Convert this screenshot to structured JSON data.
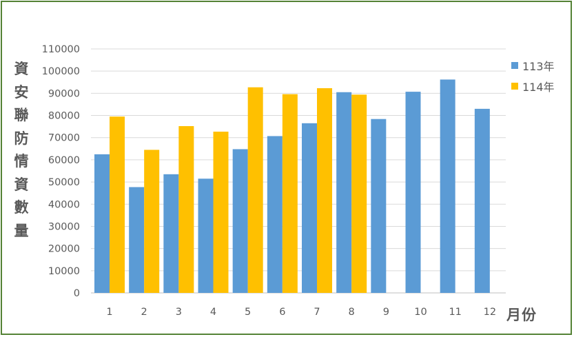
{
  "chart_data": {
    "type": "bar",
    "title": "",
    "ylabel": "資安聯防情資數量",
    "xlabel": "月份",
    "categories": [
      "1",
      "2",
      "3",
      "4",
      "5",
      "6",
      "7",
      "8",
      "9",
      "10",
      "11",
      "12"
    ],
    "series": [
      {
        "name": "113年",
        "color": "#5B9BD5",
        "values": [
          62500,
          47700,
          53500,
          51500,
          64800,
          70700,
          76500,
          90500,
          78400,
          90700,
          96200,
          83000
        ]
      },
      {
        "name": "114年",
        "color": "#FFC000",
        "values": [
          79500,
          64500,
          75200,
          72700,
          92700,
          89600,
          92300,
          89400,
          null,
          null,
          null,
          null
        ]
      }
    ],
    "ylim": [
      0,
      110000
    ],
    "yticks": [
      0,
      10000,
      20000,
      30000,
      40000,
      50000,
      60000,
      70000,
      80000,
      90000,
      100000,
      110000
    ],
    "grid": true,
    "legend_position": "right",
    "frame_color": "#548235"
  }
}
